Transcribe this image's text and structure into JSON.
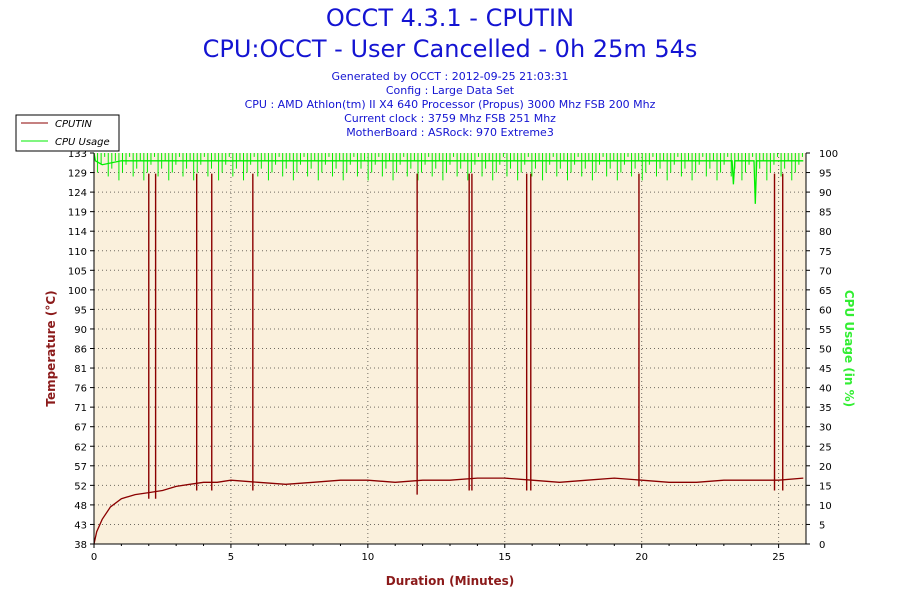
{
  "header": {
    "title": "OCCT 4.3.1 - CPUTIN",
    "subtitle": "CPU:OCCT - User Cancelled - 0h 25m 54s",
    "info": [
      "Generated by OCCT : 2012-09-25 21:03:31",
      "Config : Large Data Set",
      "CPU : AMD Athlon(tm) II X4 640 Processor (Propus) 3000 Mhz FSB 200 Mhz",
      "Current clock : 3759 Mhz FSB 251 Mhz",
      "MotherBoard : ASRock: 970 Extreme3"
    ]
  },
  "colors": {
    "temperature": "#8b0000",
    "cpu_usage": "#00ee00",
    "plot_bg": "#faf0dc",
    "grid": "#000000",
    "axis_left_label": "#8b1a1a",
    "axis_right_label": "#33ee33"
  },
  "chart_data": {
    "type": "line",
    "xlabel": "Duration (Minutes)",
    "ylabel_left": "Temperature (°C)",
    "ylabel_right": "CPU Usage (in %)",
    "xlim": [
      0,
      26
    ],
    "ylim_left": [
      38,
      133
    ],
    "ylim_right": [
      0,
      100
    ],
    "x_ticks": [
      "0",
      "5",
      "10",
      "15",
      "20",
      "25"
    ],
    "y_ticks_left": [
      "38",
      "43",
      "48",
      "52",
      "57",
      "62",
      "67",
      "71",
      "76",
      "81",
      "86",
      "90",
      "95",
      "100",
      "105",
      "110",
      "114",
      "119",
      "124",
      "129",
      "133"
    ],
    "y_ticks_right": [
      "0",
      "5",
      "10",
      "15",
      "20",
      "25",
      "30",
      "35",
      "40",
      "45",
      "50",
      "55",
      "60",
      "65",
      "70",
      "75",
      "80",
      "85",
      "90",
      "95",
      "100"
    ],
    "legend": {
      "position": "top-left",
      "entries": [
        "CPUTIN",
        "CPU Usage"
      ]
    },
    "grid": true,
    "series": [
      {
        "name": "CPUTIN",
        "axis": "left",
        "x": [
          0,
          0.1,
          0.3,
          0.6,
          1.0,
          1.5,
          2.0,
          2.5,
          3.0,
          3.5,
          4.0,
          4.5,
          5.0,
          6.0,
          7.0,
          8.0,
          9.0,
          10.0,
          11.0,
          12.0,
          13.0,
          14.0,
          15.0,
          16.0,
          17.0,
          18.0,
          19.0,
          20.0,
          21.0,
          22.0,
          23.0,
          24.0,
          25.0,
          25.9
        ],
        "y": [
          38,
          41,
          44,
          47,
          49,
          50,
          50.5,
          51,
          52,
          52.5,
          53,
          53,
          53.5,
          53,
          52.5,
          53,
          53.5,
          53.5,
          53,
          53.5,
          53.5,
          54,
          54,
          53.5,
          53,
          53.5,
          54,
          53.5,
          53,
          53,
          53.5,
          53.5,
          53.5,
          54
        ]
      },
      {
        "name": "CPU Usage",
        "axis": "right",
        "x": [
          0,
          0.05,
          0.3,
          1.0,
          2.0,
          5.0,
          10.0,
          15.0,
          20.0,
          23.3,
          23.35,
          23.4,
          24.1,
          24.15,
          24.2,
          25.9
        ],
        "y": [
          100,
          98,
          97,
          98,
          98,
          98,
          98,
          98,
          98,
          98,
          92,
          98,
          98,
          87,
          98,
          98
        ]
      }
    ],
    "spikes": [
      {
        "x": 2.0,
        "peak": 128,
        "trough": 49
      },
      {
        "x": 2.25,
        "peak": 128,
        "trough": 49
      },
      {
        "x": 3.75,
        "peak": 128,
        "trough": 51
      },
      {
        "x": 4.3,
        "peak": 128,
        "trough": 51
      },
      {
        "x": 5.8,
        "peak": 128,
        "trough": 51
      },
      {
        "x": 11.8,
        "peak": 128,
        "trough": 50
      },
      {
        "x": 13.7,
        "peak": 128,
        "trough": 51
      },
      {
        "x": 13.8,
        "peak": 128,
        "trough": 51
      },
      {
        "x": 15.8,
        "peak": 128,
        "trough": 51
      },
      {
        "x": 15.95,
        "peak": 128,
        "trough": 51
      },
      {
        "x": 19.9,
        "peak": 128,
        "trough": 52
      },
      {
        "x": 24.85,
        "peak": 128,
        "trough": 51
      },
      {
        "x": 25.15,
        "peak": 128,
        "trough": 51
      }
    ]
  }
}
